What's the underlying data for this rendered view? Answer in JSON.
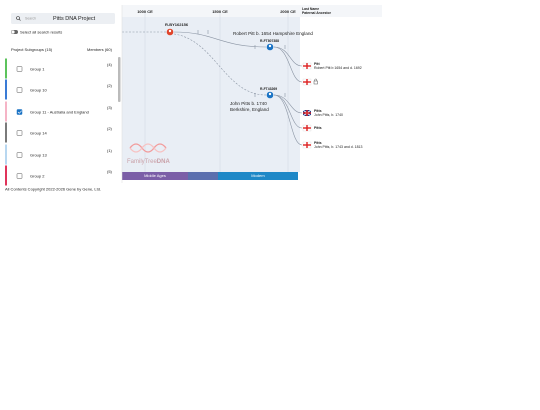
{
  "search": {
    "placeholder": "Search",
    "project": "Pitts DNA Project"
  },
  "select_all": "Select all search results",
  "subgroups": {
    "header": "Project Subgroups (15)",
    "members": "Members (60)",
    "groups": [
      {
        "name": "Group 1",
        "count": "(4)"
      },
      {
        "name": "Group 10",
        "count": "(2)"
      },
      {
        "name": "Group 11 - Australia and England",
        "count": "(3)"
      },
      {
        "name": "Group 14",
        "count": "(2)"
      },
      {
        "name": "Group 13",
        "count": "(1)"
      },
      {
        "name": "Group 2",
        "count": "(5)"
      }
    ]
  },
  "timeline": {
    "ticks": [
      "1000 CE",
      "1500 CE",
      "2000 CE"
    ],
    "last_name": "Last Name",
    "paternal": "Paternal Ancestor",
    "eras": [
      "Middle Ages",
      "Modern"
    ]
  },
  "nodes": [
    {
      "label": "R-BY162156"
    },
    {
      "label": "R-FT807388"
    },
    {
      "label": "R-FT43269"
    }
  ],
  "ancestors": [
    "Robert Pitt b. 1654  Hampshire England",
    "John Pitts b. 1740",
    "Berkshire, England"
  ],
  "leaves": [
    {
      "name": "Pitt",
      "detail": "Robert Pitt b 1654 and d. 1692"
    },
    {
      "name": "Pitts",
      "detail": "John Pitts, b. 1740"
    },
    {
      "name": "Pitts"
    },
    {
      "name": "Pitts",
      "detail": "John Pitts, b. 1743 and d. 1813"
    }
  ],
  "logo": {
    "a": "FamilyTree",
    "b": "DNA"
  },
  "footer": "All Contents Copyright 2022-2026 Gene by Gene, Ltd."
}
